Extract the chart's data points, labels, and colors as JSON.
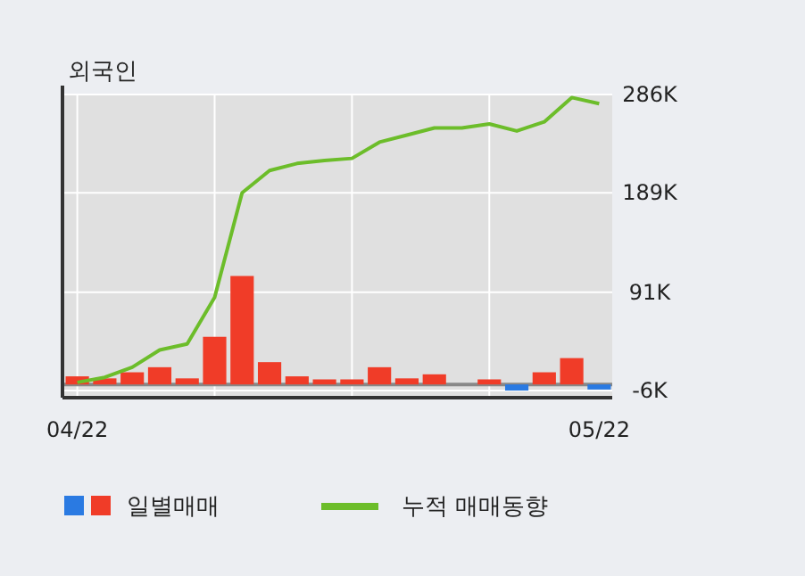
{
  "chart_data": {
    "type": "bar",
    "title": "외국인",
    "categories": [
      "04/22",
      null,
      null,
      null,
      null,
      null,
      null,
      null,
      null,
      null,
      null,
      null,
      null,
      null,
      null,
      null,
      null,
      null,
      null,
      "05/22"
    ],
    "series": [
      {
        "name": "일별매매",
        "colors": [
          "#f03c28",
          "#f03c28",
          "#f03c28",
          "#f03c28",
          "#f03c28",
          "#f03c28",
          "#f03c28",
          "#f03c28",
          "#f03c28",
          "#f03c28",
          "#f03c28",
          "#f03c28",
          "#f03c28",
          "#f03c28",
          "#f03c28",
          "#f03c28",
          "#2a7ae2",
          "#f03c28",
          "#f03c28",
          "#2a7ae2"
        ],
        "values": [
          8,
          6,
          12,
          17,
          6,
          47,
          107,
          22,
          8,
          5,
          5,
          17,
          6,
          10,
          0,
          5,
          -6,
          12,
          26,
          -5
        ]
      },
      {
        "name": "누적 매매동향",
        "type": "line",
        "color": "#6cbd2a",
        "values": [
          2,
          7,
          17,
          34,
          40,
          86,
          189,
          211,
          218,
          221,
          223,
          239,
          246,
          253,
          253,
          257,
          250,
          259,
          283,
          277
        ]
      }
    ],
    "ylim": [
      -6,
      286
    ],
    "yticks": [
      {
        "value": -6,
        "label": "-6K"
      },
      {
        "value": 91,
        "label": "91K"
      },
      {
        "value": 189,
        "label": "189K"
      },
      {
        "value": 286,
        "label": "286K"
      }
    ],
    "grid": true,
    "legend": "bottom"
  }
}
